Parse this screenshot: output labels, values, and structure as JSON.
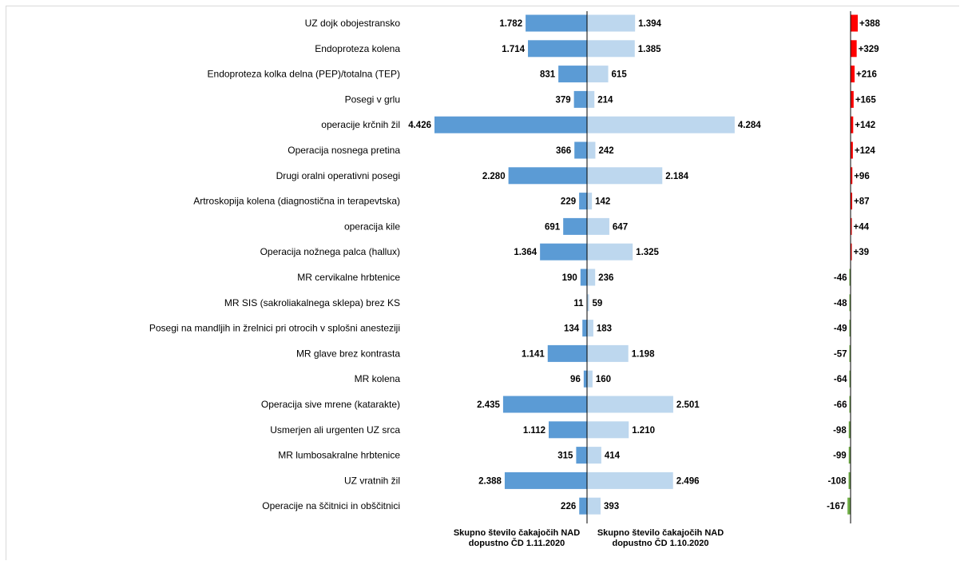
{
  "chart_data": {
    "type": "bar",
    "categories": [
      "UZ dojk obojestransko",
      "Endoproteza kolena",
      "Endoproteza kolka delna (PEP)/totalna (TEP)",
      "Posegi v grlu",
      "operacije krčnih žil",
      "Operacija nosnega pretina",
      "Drugi oralni operativni posegi",
      "Artroskopija kolena (diagnostična in terapevtska)",
      "operacija kile",
      "Operacija nožnega palca (hallux)",
      "MR cervikalne hrbtenice",
      "MR SIS (sakroliakalnega sklepa) brez KS",
      "Posegi na mandljih in žrelnici pri otrocih v splošni anesteziji",
      "MR glave brez kontrasta",
      "MR kolena",
      "Operacija sive mrene (katarakte)",
      "Usmerjen ali urgenten UZ srca",
      "MR lumbosakralne hrbtenice",
      "UZ vratnih žil",
      "Operacije na ščitnici in obščitnici"
    ],
    "series": [
      {
        "name": "Skupno število čakajočih NAD dopustno ČD 1.11.2020",
        "color": "#5b9bd5",
        "values": [
          1782,
          1714,
          831,
          379,
          4426,
          366,
          2280,
          229,
          691,
          1364,
          190,
          11,
          134,
          1141,
          96,
          2435,
          1112,
          315,
          2388,
          226
        ],
        "labels": [
          "1.782",
          "1.714",
          "831",
          "379",
          "4.426",
          "366",
          "2.280",
          "229",
          "691",
          "1.364",
          "190",
          "11",
          "134",
          "1.141",
          "96",
          "2.435",
          "1.112",
          "315",
          "2.388",
          "226"
        ]
      },
      {
        "name": "Skupno število čakajočih NAD dopustno ČD 1.10.2020",
        "color": "#bdd7ee",
        "values": [
          1394,
          1385,
          615,
          214,
          4284,
          242,
          2184,
          142,
          647,
          1325,
          236,
          59,
          183,
          1198,
          160,
          2501,
          1210,
          414,
          2496,
          393
        ],
        "labels": [
          "1.394",
          "1.385",
          "615",
          "214",
          "4.284",
          "242",
          "2.184",
          "142",
          "647",
          "1.325",
          "236",
          "59",
          "183",
          "1.198",
          "160",
          "2.501",
          "1.210",
          "414",
          "2.496",
          "393"
        ]
      }
    ],
    "difference": {
      "values": [
        388,
        329,
        216,
        165,
        142,
        124,
        96,
        87,
        44,
        39,
        -46,
        -48,
        -49,
        -57,
        -64,
        -66,
        -98,
        -99,
        -108,
        -167
      ],
      "labels": [
        "+388",
        "+329",
        "+216",
        "+165",
        "+142",
        "+124",
        "+96",
        "+87",
        "+44",
        "+39",
        "-46",
        "-48",
        "-49",
        "-57",
        "-64",
        "-66",
        "-98",
        "-99",
        "-108",
        "-167"
      ],
      "positive_color": "#ff0000",
      "negative_color": "#70ad47"
    },
    "legend": {
      "left": [
        "Skupno število čakajočih NAD",
        "dopustno ČD 1.11.2020"
      ],
      "right": [
        "Skupno število čakajočih NAD",
        "dopustno ČD 1.10.2020"
      ]
    },
    "xlim": [
      0,
      4500
    ],
    "grid": false
  }
}
